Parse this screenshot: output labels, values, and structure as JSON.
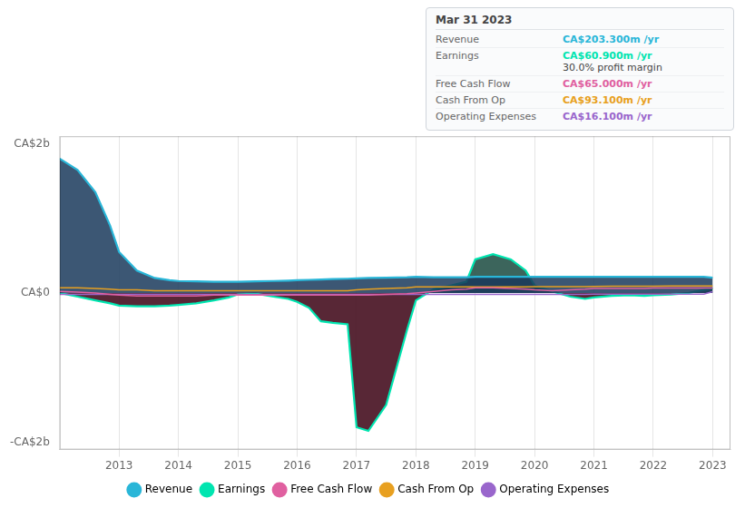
{
  "chart_data": {
    "type": "line",
    "x": [
      2012.0,
      2012.3,
      2012.6,
      2012.85,
      2013.0,
      2013.3,
      2013.6,
      2013.85,
      2014.0,
      2014.3,
      2014.6,
      2014.85,
      2015.0,
      2015.3,
      2015.6,
      2015.85,
      2016.0,
      2016.2,
      2016.4,
      2016.6,
      2016.85,
      2017.0,
      2017.2,
      2017.5,
      2017.85,
      2018.0,
      2018.3,
      2018.6,
      2018.85,
      2019.0,
      2019.3,
      2019.6,
      2019.85,
      2020.0,
      2020.3,
      2020.6,
      2020.85,
      2021.0,
      2021.3,
      2021.6,
      2021.85,
      2022.0,
      2022.3,
      2022.6,
      2022.85,
      2023.0
    ],
    "series": [
      {
        "name": "Revenue",
        "color": "#29b6d8",
        "type": "area",
        "fill_color": "#1a3a5c",
        "values": [
          1.8,
          1.65,
          1.35,
          0.9,
          0.55,
          0.3,
          0.2,
          0.17,
          0.16,
          0.155,
          0.15,
          0.15,
          0.15,
          0.155,
          0.16,
          0.165,
          0.17,
          0.175,
          0.18,
          0.185,
          0.19,
          0.195,
          0.2,
          0.205,
          0.21,
          0.215,
          0.21,
          0.21,
          0.21,
          0.215,
          0.215,
          0.215,
          0.215,
          0.215,
          0.215,
          0.215,
          0.215,
          0.215,
          0.215,
          0.215,
          0.215,
          0.215,
          0.215,
          0.215,
          0.215,
          0.2033
        ]
      },
      {
        "name": "Earnings",
        "color": "#00e5b0",
        "type": "area",
        "fill_color": "#1a4a40",
        "fill_color_negative": "#4a1525",
        "values": [
          0.0,
          -0.05,
          -0.1,
          -0.14,
          -0.17,
          -0.18,
          -0.18,
          -0.17,
          -0.16,
          -0.14,
          -0.1,
          -0.06,
          -0.02,
          -0.01,
          -0.05,
          -0.08,
          -0.12,
          -0.2,
          -0.38,
          -0.4,
          -0.42,
          -1.8,
          -1.85,
          -1.5,
          -0.5,
          -0.1,
          0.05,
          0.1,
          0.15,
          0.45,
          0.52,
          0.45,
          0.3,
          0.1,
          0.02,
          -0.05,
          -0.08,
          -0.06,
          -0.04,
          -0.03,
          -0.04,
          -0.03,
          -0.02,
          0.0,
          0.04,
          0.0609
        ]
      },
      {
        "name": "Free Cash Flow",
        "color": "#e060a0",
        "type": "line",
        "values": [
          0.02,
          0.01,
          0.0,
          -0.02,
          -0.03,
          -0.04,
          -0.04,
          -0.04,
          -0.04,
          -0.04,
          -0.03,
          -0.03,
          -0.03,
          -0.03,
          -0.03,
          -0.03,
          -0.03,
          -0.03,
          -0.03,
          -0.03,
          -0.03,
          -0.03,
          -0.03,
          -0.02,
          -0.01,
          0.0,
          0.02,
          0.04,
          0.05,
          0.07,
          0.07,
          0.06,
          0.05,
          0.04,
          0.03,
          0.04,
          0.05,
          0.06,
          0.06,
          0.06,
          0.06,
          0.065,
          0.065,
          0.065,
          0.065,
          0.065
        ]
      },
      {
        "name": "Cash From Op",
        "color": "#e8a020",
        "type": "line",
        "values": [
          0.07,
          0.07,
          0.06,
          0.05,
          0.04,
          0.04,
          0.03,
          0.03,
          0.03,
          0.03,
          0.03,
          0.03,
          0.03,
          0.03,
          0.03,
          0.03,
          0.03,
          0.03,
          0.03,
          0.03,
          0.03,
          0.04,
          0.05,
          0.06,
          0.07,
          0.08,
          0.08,
          0.08,
          0.08,
          0.08,
          0.08,
          0.08,
          0.08,
          0.085,
          0.085,
          0.085,
          0.085,
          0.088,
          0.09,
          0.09,
          0.09,
          0.09,
          0.092,
          0.093,
          0.093,
          0.0931
        ]
      },
      {
        "name": "Operating Expenses",
        "color": "#9966cc",
        "type": "line",
        "values": [
          -0.02,
          -0.02,
          -0.02,
          -0.02,
          -0.02,
          -0.02,
          -0.02,
          -0.02,
          -0.02,
          -0.02,
          -0.02,
          -0.02,
          -0.02,
          -0.02,
          -0.02,
          -0.02,
          -0.02,
          -0.02,
          -0.02,
          -0.02,
          -0.02,
          -0.02,
          -0.02,
          -0.02,
          -0.02,
          -0.02,
          -0.02,
          -0.02,
          -0.02,
          -0.02,
          -0.02,
          -0.02,
          -0.02,
          -0.02,
          -0.02,
          -0.02,
          -0.02,
          -0.016,
          -0.016,
          -0.016,
          -0.016,
          -0.016,
          -0.016,
          -0.016,
          -0.016,
          0.0161
        ]
      }
    ],
    "xlim": [
      2012.0,
      2023.3
    ],
    "xticks": [
      2013,
      2014,
      2015,
      2016,
      2017,
      2018,
      2019,
      2020,
      2021,
      2022,
      2023
    ],
    "ylim": [
      -2.1,
      2.1
    ],
    "yticks": [
      {
        "value": -2.0,
        "label": "-CA$2b"
      },
      {
        "value": 0.0,
        "label": "CA$0"
      },
      {
        "value": 2.0,
        "label": "CA$2b"
      }
    ],
    "grid": "x",
    "legend": "bottom",
    "info_box": {
      "title": "Mar 31 2023",
      "rows": [
        {
          "label": "Revenue",
          "value": "CA$203.300m /yr"
        },
        {
          "label": "Earnings",
          "value": "CA$60.900m /yr",
          "note": "30.0% profit margin"
        },
        {
          "label": "Free Cash Flow",
          "value": "CA$65.000m /yr"
        },
        {
          "label": "Cash From Op",
          "value": "CA$93.100m /yr"
        },
        {
          "label": "Operating Expenses",
          "value": "CA$16.100m /yr"
        }
      ]
    }
  }
}
